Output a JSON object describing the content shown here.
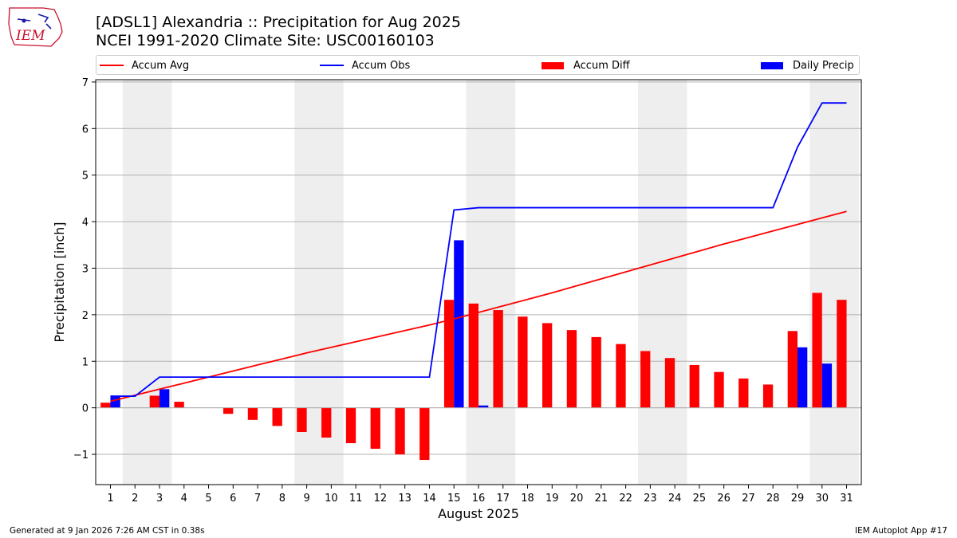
{
  "header": {
    "title_line1": "[ADSL1] Alexandria :: Precipitation for Aug 2025",
    "title_line2": "NCEI 1991-2020 Climate Site: USC00160103",
    "logo_text": "IEM"
  },
  "legend": {
    "items": [
      {
        "label": "Accum Avg",
        "kind": "line",
        "color": "#ff0000"
      },
      {
        "label": "Accum Obs",
        "kind": "line",
        "color": "#0000ff"
      },
      {
        "label": "Accum Diff",
        "kind": "bar",
        "color": "#ff0000"
      },
      {
        "label": "Daily Precip",
        "kind": "bar",
        "color": "#0000ff"
      }
    ]
  },
  "footer": {
    "left": "Generated at 9 Jan 2026 7:26 AM CST in 0.38s",
    "right": "IEM Autoplot App #17"
  },
  "chart_data": {
    "type": "bar",
    "xlabel": "August 2025",
    "ylabel": "Precipitation [inch]",
    "ylim": [
      -1.65,
      7.05
    ],
    "yticks": [
      -1,
      0,
      1,
      2,
      3,
      4,
      5,
      6,
      7
    ],
    "ytick_labels": [
      "−1",
      "0",
      "1",
      "2",
      "3",
      "4",
      "5",
      "6",
      "7"
    ],
    "categories": [
      "1",
      "2",
      "3",
      "4",
      "5",
      "6",
      "7",
      "8",
      "9",
      "10",
      "11",
      "12",
      "13",
      "14",
      "15",
      "16",
      "17",
      "18",
      "19",
      "20",
      "21",
      "22",
      "23",
      "24",
      "25",
      "26",
      "27",
      "28",
      "29",
      "30",
      "31"
    ],
    "weekend_shading": [
      [
        2,
        3
      ],
      [
        9,
        10
      ],
      [
        16,
        17
      ],
      [
        23,
        24
      ],
      [
        30,
        31
      ]
    ],
    "grid": "horizontal",
    "series": [
      {
        "name": "Accum Avg",
        "type": "line",
        "color": "#ff0000",
        "values": [
          0.14,
          0.27,
          0.4,
          0.53,
          0.66,
          0.79,
          0.92,
          1.05,
          1.18,
          1.3,
          1.42,
          1.54,
          1.66,
          1.78,
          1.91,
          2.05,
          2.19,
          2.33,
          2.47,
          2.62,
          2.77,
          2.92,
          3.07,
          3.22,
          3.37,
          3.52,
          3.66,
          3.8,
          3.94,
          4.08,
          4.22
        ]
      },
      {
        "name": "Accum Obs",
        "type": "line",
        "color": "#0000ff",
        "values": [
          0.25,
          0.25,
          0.66,
          0.66,
          0.66,
          0.66,
          0.66,
          0.66,
          0.66,
          0.66,
          0.66,
          0.66,
          0.66,
          0.66,
          4.25,
          4.3,
          4.3,
          4.3,
          4.3,
          4.3,
          4.3,
          4.3,
          4.3,
          4.3,
          4.3,
          4.3,
          4.3,
          4.3,
          5.6,
          6.55,
          6.55
        ]
      },
      {
        "name": "Accum Diff",
        "type": "bar",
        "color": "#ff0000",
        "values": [
          0.11,
          0.0,
          0.26,
          0.13,
          0.0,
          -0.13,
          -0.26,
          -0.39,
          -0.52,
          -0.64,
          -0.76,
          -0.88,
          -1.0,
          -1.12,
          2.32,
          2.24,
          2.1,
          1.96,
          1.82,
          1.67,
          1.52,
          1.37,
          1.22,
          1.07,
          0.92,
          0.77,
          0.63,
          0.5,
          1.65,
          2.47,
          2.32
        ]
      },
      {
        "name": "Daily Precip",
        "type": "bar",
        "color": "#0000ff",
        "values": [
          0.25,
          0.0,
          0.4,
          0.0,
          0.0,
          0.0,
          0.0,
          0.0,
          0.0,
          0.0,
          0.0,
          0.0,
          0.0,
          0.0,
          3.6,
          0.05,
          0.0,
          0.0,
          0.0,
          0.0,
          0.0,
          0.0,
          0.0,
          0.0,
          0.0,
          0.0,
          0.0,
          0.0,
          1.3,
          0.95,
          0.0
        ]
      }
    ]
  }
}
